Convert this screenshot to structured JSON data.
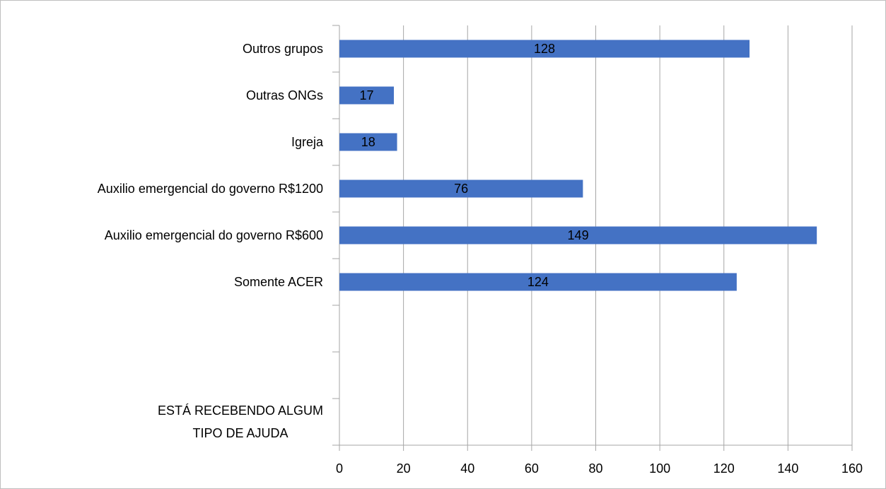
{
  "chart_data": {
    "type": "hbar",
    "categories": [
      "Outros grupos",
      "Outras ONGs",
      "Igreja",
      "Auxilio emergencial do governo R$1200",
      "Auxilio emergencial do governo R$600",
      "Somente ACER",
      null,
      null,
      "ESTÁ RECEBENDO ALGUM\nTIPO DE AJUDA"
    ],
    "values": [
      128,
      17,
      18,
      76,
      149,
      124,
      null,
      null,
      null
    ],
    "color": "#4472c4",
    "xlim": [
      0,
      160
    ],
    "xticks": [
      0,
      20,
      40,
      60,
      80,
      100,
      120,
      140,
      160
    ],
    "grid": true
  }
}
